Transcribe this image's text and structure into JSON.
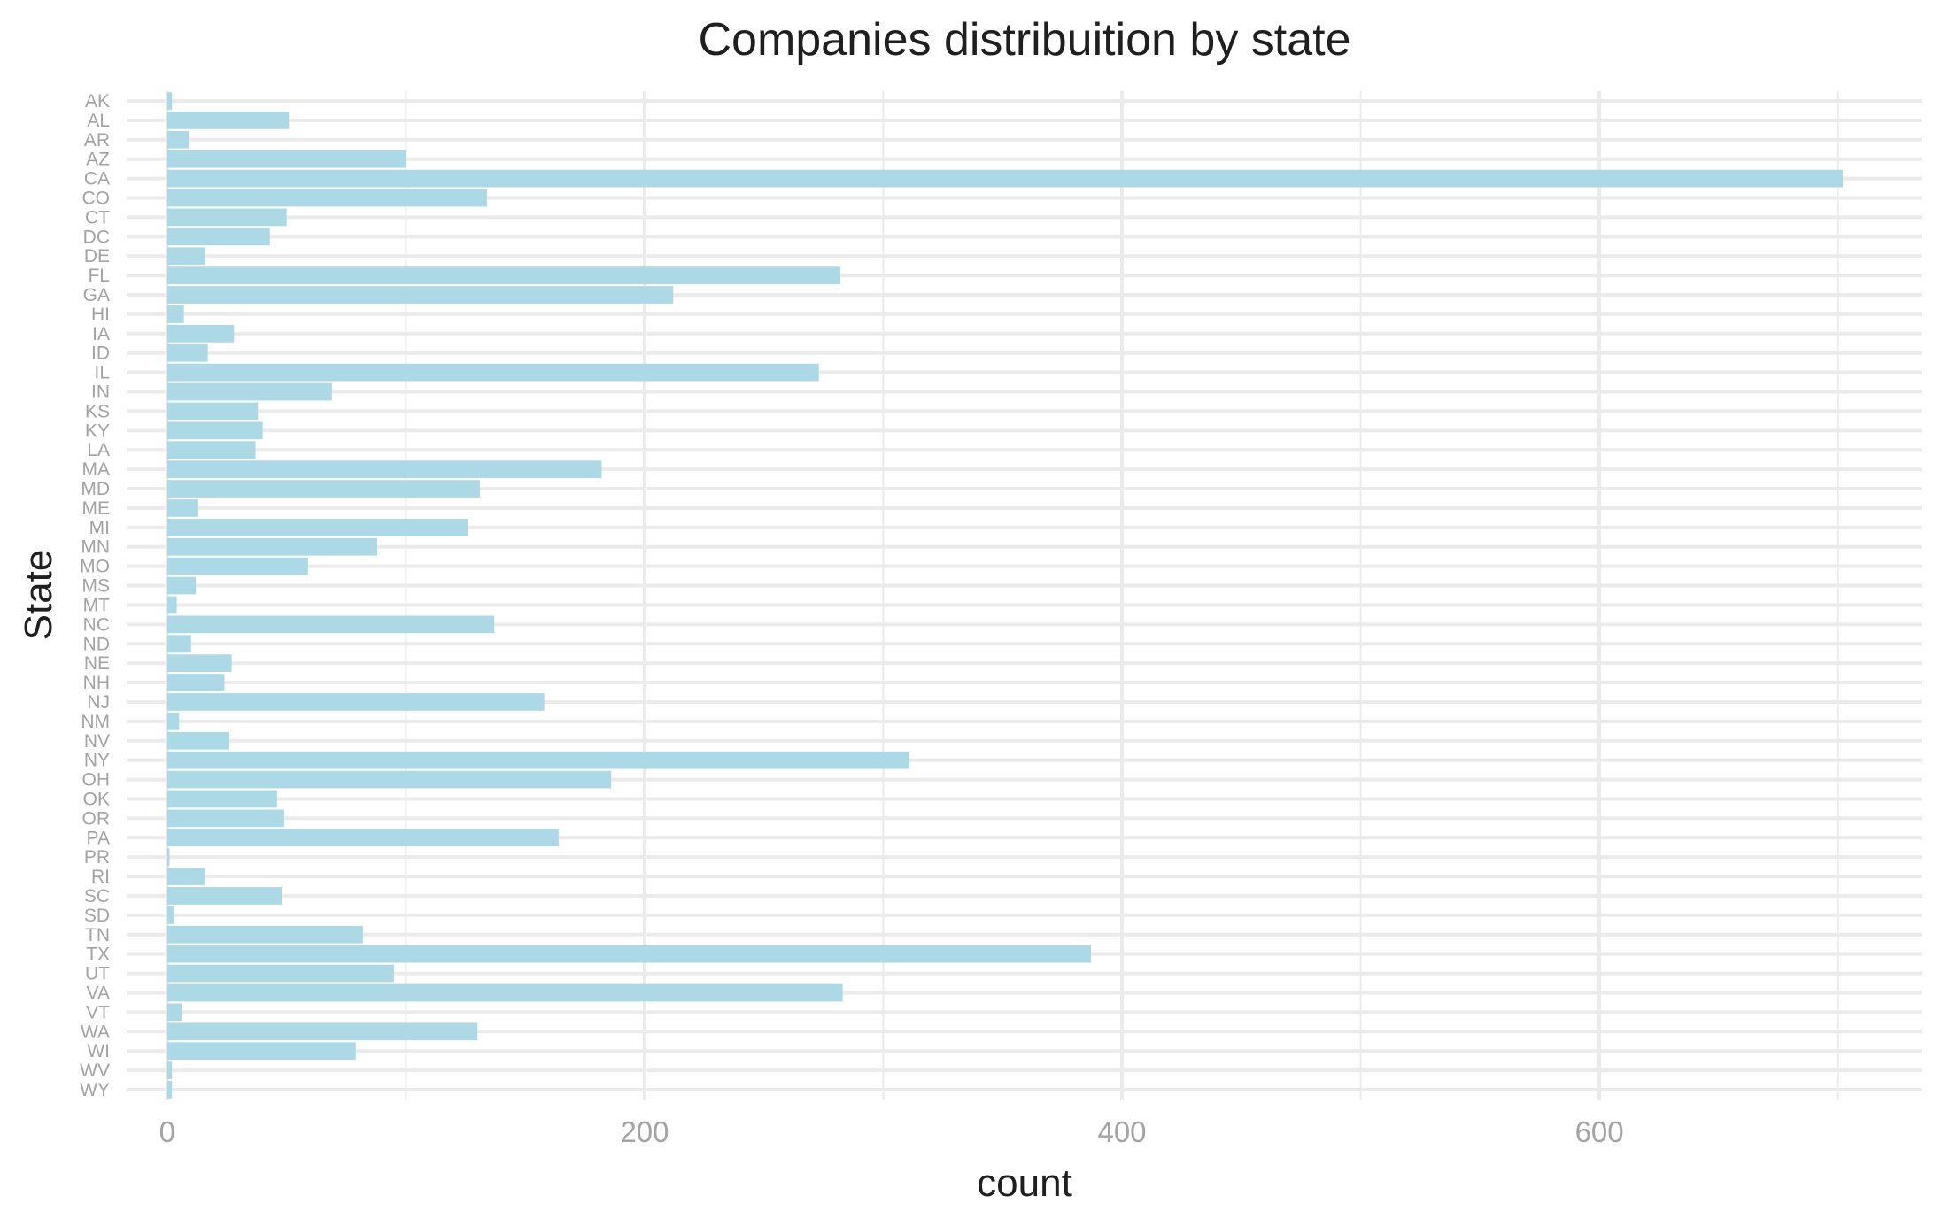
{
  "chart_data": {
    "type": "bar",
    "orientation": "horizontal",
    "title": "Companies distribuition by state",
    "xlabel": "count",
    "ylabel": "State",
    "xlim": [
      -17,
      735
    ],
    "xticks": [
      0,
      200,
      400,
      600
    ],
    "xtick_labels": [
      "0",
      "200",
      "400",
      "600"
    ],
    "grid": true,
    "legend": "none",
    "bar_color": "#add8e6",
    "categories": [
      "AK",
      "AL",
      "AR",
      "AZ",
      "CA",
      "CO",
      "CT",
      "DC",
      "DE",
      "FL",
      "GA",
      "HI",
      "IA",
      "ID",
      "IL",
      "IN",
      "KS",
      "KY",
      "LA",
      "MA",
      "MD",
      "ME",
      "MI",
      "MN",
      "MO",
      "MS",
      "MT",
      "NC",
      "ND",
      "NE",
      "NH",
      "NJ",
      "NM",
      "NV",
      "NY",
      "OH",
      "OK",
      "OR",
      "PA",
      "PR",
      "RI",
      "SC",
      "SD",
      "TN",
      "TX",
      "UT",
      "VA",
      "VT",
      "WA",
      "WI",
      "WV",
      "WY"
    ],
    "values": [
      2,
      51,
      9,
      100,
      702,
      134,
      50,
      43,
      16,
      282,
      212,
      7,
      28,
      17,
      273,
      69,
      38,
      40,
      37,
      182,
      131,
      13,
      126,
      88,
      59,
      12,
      4,
      137,
      10,
      27,
      24,
      158,
      5,
      26,
      311,
      186,
      46,
      49,
      164,
      1,
      16,
      48,
      3,
      82,
      387,
      95,
      283,
      6,
      130,
      79,
      2,
      2
    ]
  }
}
